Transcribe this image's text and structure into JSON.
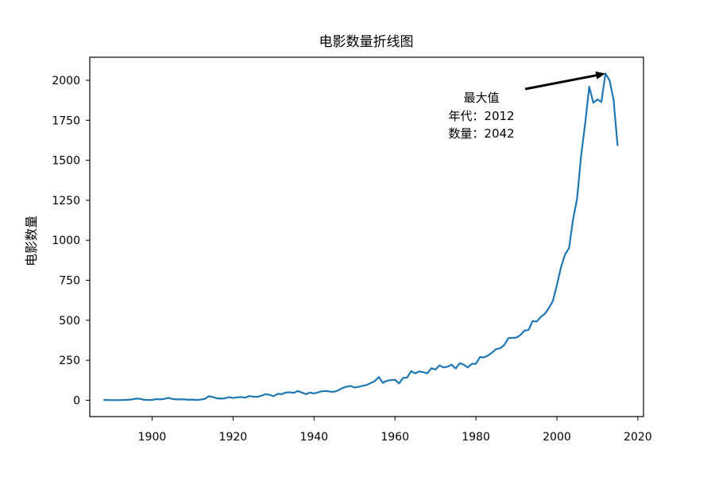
{
  "chart_data": {
    "type": "line",
    "title": "电影数量折线图",
    "xlabel": "",
    "ylabel": "电影数量",
    "xlim": [
      1884.6,
      2021.4
    ],
    "ylim": [
      -102.1,
      2144.1
    ],
    "xticks": [
      1900,
      1920,
      1940,
      1960,
      1980,
      2000,
      2020
    ],
    "yticks": [
      0,
      250,
      500,
      750,
      1000,
      1250,
      1500,
      1750,
      2000
    ],
    "grid": false,
    "line_color": "#1f77b4",
    "series": [
      {
        "x": [
          1888,
          1890,
          1892,
          1894,
          1895,
          1896,
          1897,
          1898,
          1899,
          1900,
          1901,
          1902,
          1903,
          1904,
          1905,
          1906,
          1907,
          1908,
          1909,
          1910,
          1911,
          1912,
          1913,
          1914,
          1915,
          1916,
          1917,
          1918,
          1919,
          1920,
          1921,
          1922,
          1923,
          1924,
          1925,
          1926,
          1927,
          1928,
          1929,
          1930,
          1931,
          1932,
          1933,
          1934,
          1935,
          1936,
          1937,
          1938,
          1939,
          1940,
          1941,
          1942,
          1943,
          1944,
          1945,
          1946,
          1947,
          1948,
          1949,
          1950,
          1951,
          1952,
          1953,
          1954,
          1955,
          1956,
          1957,
          1958,
          1959,
          1960,
          1961,
          1962,
          1963,
          1964,
          1965,
          1966,
          1967,
          1968,
          1969,
          1970,
          1971,
          1972,
          1973,
          1974,
          1975,
          1976,
          1977,
          1978,
          1979,
          1980,
          1981,
          1982,
          1983,
          1984,
          1985,
          1986,
          1987,
          1988,
          1989,
          1990,
          1991,
          1992,
          1993,
          1994,
          1995,
          1996,
          1997,
          1998,
          1999,
          2000,
          2001,
          2002,
          2003,
          2004,
          2005,
          2006,
          2007,
          2008,
          2009,
          2010,
          2011,
          2012,
          2013,
          2014,
          2015
        ],
        "values": [
          2,
          1,
          1,
          3,
          5,
          10,
          9,
          3,
          2,
          2,
          7,
          5,
          8,
          15,
          8,
          5,
          5,
          5,
          3,
          4,
          2,
          4,
          8,
          25,
          20,
          12,
          10,
          12,
          19,
          14,
          18,
          20,
          16,
          26,
          22,
          21,
          28,
          38,
          34,
          25,
          40,
          38,
          48,
          50,
          46,
          58,
          48,
          38,
          48,
          42,
          50,
          56,
          58,
          54,
          53,
          62,
          76,
          85,
          89,
          80,
          84,
          90,
          95,
          107,
          120,
          145,
          108,
          122,
          126,
          128,
          105,
          140,
          142,
          182,
          168,
          180,
          175,
          168,
          200,
          192,
          218,
          205,
          210,
          222,
          198,
          232,
          222,
          205,
          228,
          228,
          270,
          268,
          280,
          298,
          320,
          325,
          345,
          388,
          390,
          392,
          408,
          435,
          440,
          495,
          492,
          520,
          540,
          575,
          620,
          720,
          830,
          910,
          952,
          1130,
          1260,
          1530,
          1730,
          1960,
          1860,
          1880,
          1865,
          2042,
          2000,
          1880,
          1590
        ]
      }
    ],
    "annotation": {
      "line1": "最大值",
      "line2": "年代：2012",
      "line3": "数量：2042",
      "x": 2012,
      "y": 2042
    }
  }
}
